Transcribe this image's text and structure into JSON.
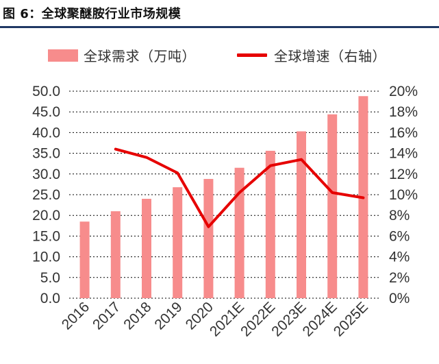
{
  "figure": {
    "title": "图 6：全球聚醚胺行业市场规模"
  },
  "colors": {
    "bar": "#f78c8c",
    "line": "#e60000",
    "grid": "#000000",
    "title_rule": "#1f3864"
  },
  "chart_data": {
    "type": "bar+line",
    "title": "图 6：全球聚醚胺行业市场规模",
    "categories": [
      "2016",
      "2017",
      "2018",
      "2019",
      "2020",
      "2021E",
      "2022E",
      "2023E",
      "2024E",
      "2025E"
    ],
    "series": [
      {
        "name": "全球需求（万吨）",
        "type": "bar",
        "axis": "left",
        "values": [
          18.5,
          21.0,
          24.0,
          26.8,
          28.8,
          31.5,
          35.6,
          40.3,
          44.4,
          48.8
        ]
      },
      {
        "name": "全球增速（右轴）",
        "type": "line",
        "axis": "right",
        "values": [
          null,
          14.4,
          13.6,
          12.1,
          6.9,
          10.2,
          12.8,
          13.4,
          10.2,
          9.7
        ]
      }
    ],
    "y_left": {
      "min": 0,
      "max": 50,
      "step": 5,
      "tick_labels": [
        "0.0",
        "5.0",
        "10.0",
        "15.0",
        "20.0",
        "25.0",
        "30.0",
        "35.0",
        "40.0",
        "45.0",
        "50.0"
      ]
    },
    "y_right": {
      "min": 0,
      "max": 20,
      "step": 2,
      "unit": "%",
      "tick_labels": [
        "0%",
        "2%",
        "4%",
        "6%",
        "8%",
        "10%",
        "12%",
        "14%",
        "16%",
        "18%",
        "20%"
      ]
    },
    "legend_position": "top",
    "grid": "horizontal-dashed"
  }
}
